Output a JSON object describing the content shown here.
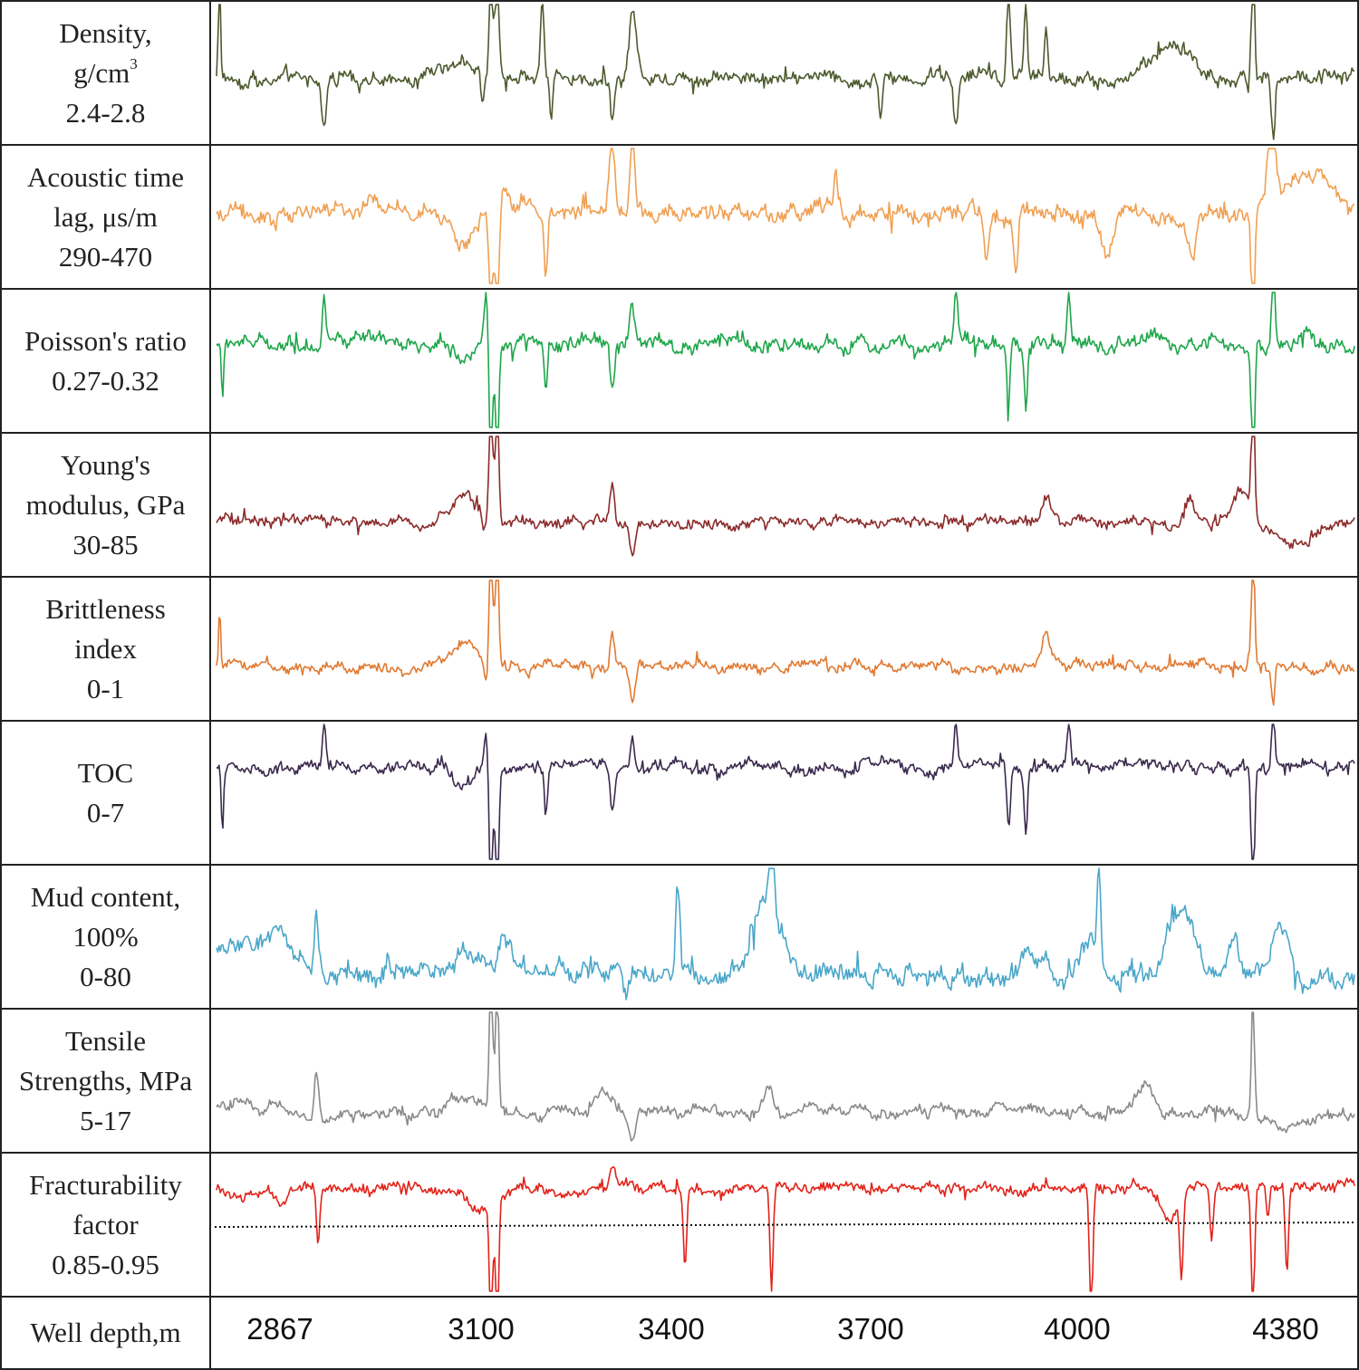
{
  "chart_data": {
    "type": "line",
    "title": "",
    "xlabel": "Well depth,m",
    "x_ticks": [
      "2867",
      "3100",
      "3400",
      "3700",
      "4000",
      "4380"
    ],
    "x_range_m": [
      2867,
      4380
    ],
    "tracks": [
      {
        "label_lines": [
          "Density,",
          "g/cm",
          "2.4-2.8"
        ],
        "superscript": "3",
        "color": "#4d5a2e",
        "range": [
          2.4,
          2.8
        ],
        "baseline": 0.46,
        "noise": 0.06,
        "events": [
          {
            "depth": 2871,
            "value": 0.9,
            "width": 2
          },
          {
            "depth": 3010,
            "value": -0.35,
            "width": 5
          },
          {
            "depth": 3195,
            "value": 0.15,
            "width": 25
          },
          {
            "depth": 3220,
            "value": -0.25,
            "width": 3
          },
          {
            "depth": 3232,
            "value": 1.0,
            "width": 3
          },
          {
            "depth": 3240,
            "value": 1.0,
            "width": 3
          },
          {
            "depth": 3300,
            "value": 0.55,
            "width": 3
          },
          {
            "depth": 3312,
            "value": -0.3,
            "width": 3
          },
          {
            "depth": 3393,
            "value": -0.3,
            "width": 3
          },
          {
            "depth": 3420,
            "value": 0.5,
            "width": 6
          },
          {
            "depth": 3750,
            "value": -0.3,
            "width": 3
          },
          {
            "depth": 3850,
            "value": -0.35,
            "width": 4
          },
          {
            "depth": 3920,
            "value": 0.7,
            "width": 3
          },
          {
            "depth": 3943,
            "value": 0.5,
            "width": 3
          },
          {
            "depth": 3970,
            "value": 0.4,
            "width": 3
          },
          {
            "depth": 4140,
            "value": 0.25,
            "width": 30
          },
          {
            "depth": 4245,
            "value": 0.9,
            "width": 3
          },
          {
            "depth": 4272,
            "value": -0.5,
            "width": 3
          }
        ]
      },
      {
        "label_lines": [
          "Acoustic time",
          "lag, μs/m",
          "290-470"
        ],
        "color": "#f0a053",
        "range": [
          290,
          470
        ],
        "baseline": 0.52,
        "noise": 0.07,
        "events": [
          {
            "depth": 3195,
            "value": -0.2,
            "width": 20
          },
          {
            "depth": 3232,
            "value": -1.0,
            "width": 3
          },
          {
            "depth": 3240,
            "value": -1.0,
            "width": 3
          },
          {
            "depth": 3250,
            "value": 0.2,
            "width": 6
          },
          {
            "depth": 3305,
            "value": -0.4,
            "width": 3
          },
          {
            "depth": 3393,
            "value": 0.5,
            "width": 5
          },
          {
            "depth": 3420,
            "value": 0.6,
            "width": 4
          },
          {
            "depth": 3690,
            "value": 0.25,
            "width": 3
          },
          {
            "depth": 3890,
            "value": -0.35,
            "width": 4
          },
          {
            "depth": 3930,
            "value": -0.4,
            "width": 4
          },
          {
            "depth": 4050,
            "value": -0.3,
            "width": 10
          },
          {
            "depth": 4165,
            "value": -0.3,
            "width": 6
          },
          {
            "depth": 4245,
            "value": -0.95,
            "width": 3
          },
          {
            "depth": 4270,
            "value": 0.45,
            "width": 8
          },
          {
            "depth": 4320,
            "value": 0.3,
            "width": 40
          }
        ]
      },
      {
        "label_lines": [
          "Poisson's ratio",
          "0.27-0.32"
        ],
        "color": "#1fa64a",
        "range": [
          0.27,
          0.32
        ],
        "baseline": 0.62,
        "noise": 0.06,
        "events": [
          {
            "depth": 2875,
            "value": -0.45,
            "width": 2
          },
          {
            "depth": 3010,
            "value": 0.35,
            "width": 3
          },
          {
            "depth": 3195,
            "value": -0.15,
            "width": 15
          },
          {
            "depth": 3225,
            "value": 0.3,
            "width": 3
          },
          {
            "depth": 3232,
            "value": -1.0,
            "width": 3
          },
          {
            "depth": 3240,
            "value": -1.0,
            "width": 3
          },
          {
            "depth": 3305,
            "value": -0.35,
            "width": 3
          },
          {
            "depth": 3393,
            "value": -0.3,
            "width": 4
          },
          {
            "depth": 3420,
            "value": 0.3,
            "width": 4
          },
          {
            "depth": 3850,
            "value": 0.45,
            "width": 3
          },
          {
            "depth": 3920,
            "value": -0.45,
            "width": 3
          },
          {
            "depth": 3943,
            "value": -0.45,
            "width": 3
          },
          {
            "depth": 4000,
            "value": 0.35,
            "width": 3
          },
          {
            "depth": 4245,
            "value": -1.0,
            "width": 3
          },
          {
            "depth": 4272,
            "value": 0.55,
            "width": 3
          }
        ]
      },
      {
        "label_lines": [
          "Young's",
          "modulus, GPa",
          "30-85"
        ],
        "color": "#8b2b2b",
        "range": [
          30,
          85
        ],
        "baseline": 0.37,
        "noise": 0.045,
        "events": [
          {
            "depth": 3195,
            "value": 0.2,
            "width": 25
          },
          {
            "depth": 3222,
            "value": -0.15,
            "width": 3
          },
          {
            "depth": 3232,
            "value": 1.0,
            "width": 3
          },
          {
            "depth": 3240,
            "value": 1.0,
            "width": 3
          },
          {
            "depth": 3393,
            "value": 0.25,
            "width": 4
          },
          {
            "depth": 3420,
            "value": -0.25,
            "width": 5
          },
          {
            "depth": 3970,
            "value": 0.15,
            "width": 8
          },
          {
            "depth": 4160,
            "value": 0.15,
            "width": 8
          },
          {
            "depth": 4230,
            "value": 0.25,
            "width": 15
          },
          {
            "depth": 4245,
            "value": 0.9,
            "width": 3
          },
          {
            "depth": 4300,
            "value": -0.15,
            "width": 40
          }
        ]
      },
      {
        "label_lines": [
          "Brittleness",
          "index",
          "0-1"
        ],
        "color": "#e07a32",
        "range": [
          0,
          1
        ],
        "baseline": 0.37,
        "noise": 0.045,
        "events": [
          {
            "depth": 2871,
            "value": 0.4,
            "width": 2
          },
          {
            "depth": 3195,
            "value": 0.15,
            "width": 25
          },
          {
            "depth": 3225,
            "value": -0.15,
            "width": 3
          },
          {
            "depth": 3232,
            "value": 1.0,
            "width": 3
          },
          {
            "depth": 3240,
            "value": 1.0,
            "width": 3
          },
          {
            "depth": 3393,
            "value": 0.25,
            "width": 4
          },
          {
            "depth": 3420,
            "value": -0.25,
            "width": 5
          },
          {
            "depth": 3970,
            "value": 0.2,
            "width": 8
          },
          {
            "depth": 4245,
            "value": 0.9,
            "width": 3
          },
          {
            "depth": 4272,
            "value": -0.3,
            "width": 3
          }
        ]
      },
      {
        "label_lines": [
          "TOC",
          "0-7"
        ],
        "color": "#3b2a4d",
        "range": [
          0,
          7
        ],
        "baseline": 0.68,
        "noise": 0.05,
        "events": [
          {
            "depth": 2875,
            "value": -0.45,
            "width": 2
          },
          {
            "depth": 3010,
            "value": 0.3,
            "width": 3
          },
          {
            "depth": 3195,
            "value": -0.15,
            "width": 15
          },
          {
            "depth": 3225,
            "value": 0.3,
            "width": 3
          },
          {
            "depth": 3232,
            "value": -1.0,
            "width": 3
          },
          {
            "depth": 3240,
            "value": -1.0,
            "width": 3
          },
          {
            "depth": 3305,
            "value": -0.35,
            "width": 3
          },
          {
            "depth": 3393,
            "value": -0.3,
            "width": 4
          },
          {
            "depth": 3420,
            "value": 0.25,
            "width": 4
          },
          {
            "depth": 3850,
            "value": 0.3,
            "width": 3
          },
          {
            "depth": 3920,
            "value": -0.45,
            "width": 3
          },
          {
            "depth": 3943,
            "value": -0.45,
            "width": 3
          },
          {
            "depth": 4000,
            "value": 0.3,
            "width": 3
          },
          {
            "depth": 4245,
            "value": -1.0,
            "width": 3
          },
          {
            "depth": 4272,
            "value": 0.4,
            "width": 3
          }
        ]
      },
      {
        "label_lines": [
          "Mud content,",
          "100%",
          "0-80"
        ],
        "color": "#4aa7c9",
        "range": [
          0,
          80
        ],
        "baseline": 0.22,
        "noise": 0.08,
        "events": [
          {
            "depth": 2900,
            "value": 0.25,
            "width": 40
          },
          {
            "depth": 2950,
            "value": 0.25,
            "width": 30
          },
          {
            "depth": 3000,
            "value": 0.45,
            "width": 4
          },
          {
            "depth": 3195,
            "value": 0.15,
            "width": 35
          },
          {
            "depth": 3250,
            "value": 0.25,
            "width": 12
          },
          {
            "depth": 3412,
            "value": -0.2,
            "width": 6
          },
          {
            "depth": 3480,
            "value": 0.7,
            "width": 4
          },
          {
            "depth": 3600,
            "value": 0.55,
            "width": 25
          },
          {
            "depth": 3605,
            "value": 0.7,
            "width": 4
          },
          {
            "depth": 3950,
            "value": 0.1,
            "width": 25
          },
          {
            "depth": 4030,
            "value": 0.3,
            "width": 20
          },
          {
            "depth": 4040,
            "value": 0.65,
            "width": 3
          },
          {
            "depth": 4150,
            "value": 0.45,
            "width": 25
          },
          {
            "depth": 4220,
            "value": 0.3,
            "width": 10
          },
          {
            "depth": 4280,
            "value": 0.35,
            "width": 15
          }
        ]
      },
      {
        "label_lines": [
          "Tensile",
          "Strengths,  MPa",
          "5-17"
        ],
        "color": "#8a8a8a",
        "range": [
          5,
          17
        ],
        "baseline": 0.27,
        "noise": 0.05,
        "events": [
          {
            "depth": 2900,
            "value": 0.08,
            "width": 40
          },
          {
            "depth": 3000,
            "value": 0.3,
            "width": 4
          },
          {
            "depth": 3195,
            "value": 0.1,
            "width": 25
          },
          {
            "depth": 3232,
            "value": 1.0,
            "width": 3
          },
          {
            "depth": 3240,
            "value": 1.0,
            "width": 3
          },
          {
            "depth": 3380,
            "value": 0.15,
            "width": 15
          },
          {
            "depth": 3420,
            "value": -0.15,
            "width": 5
          },
          {
            "depth": 3600,
            "value": 0.15,
            "width": 10
          },
          {
            "depth": 4100,
            "value": 0.2,
            "width": 15
          },
          {
            "depth": 4245,
            "value": 0.85,
            "width": 3
          },
          {
            "depth": 4290,
            "value": -0.1,
            "width": 40
          }
        ]
      },
      {
        "label_lines": [
          "Fracturability",
          "factor",
          "0.85-0.95"
        ],
        "color": "#e2231a",
        "range": [
          0.85,
          0.95
        ],
        "baseline": 0.75,
        "noise": 0.045,
        "threshold": 0.49,
        "events": [
          {
            "depth": 2910,
            "value": -0.08,
            "width": 25
          },
          {
            "depth": 2955,
            "value": -0.12,
            "width": 10
          },
          {
            "depth": 3002,
            "value": -0.45,
            "width": 3
          },
          {
            "depth": 3220,
            "value": -0.15,
            "width": 25
          },
          {
            "depth": 3232,
            "value": -1.0,
            "width": 3
          },
          {
            "depth": 3240,
            "value": -1.0,
            "width": 3
          },
          {
            "depth": 3395,
            "value": 0.15,
            "width": 5
          },
          {
            "depth": 3490,
            "value": -0.6,
            "width": 3
          },
          {
            "depth": 3605,
            "value": -0.75,
            "width": 3
          },
          {
            "depth": 4030,
            "value": -1.0,
            "width": 3
          },
          {
            "depth": 4135,
            "value": -0.25,
            "width": 15
          },
          {
            "depth": 4150,
            "value": -0.6,
            "width": 3
          },
          {
            "depth": 4190,
            "value": -0.35,
            "width": 3
          },
          {
            "depth": 4245,
            "value": -1.0,
            "width": 3
          },
          {
            "depth": 4265,
            "value": -0.25,
            "width": 3
          },
          {
            "depth": 4290,
            "value": -0.6,
            "width": 3
          }
        ]
      }
    ]
  }
}
